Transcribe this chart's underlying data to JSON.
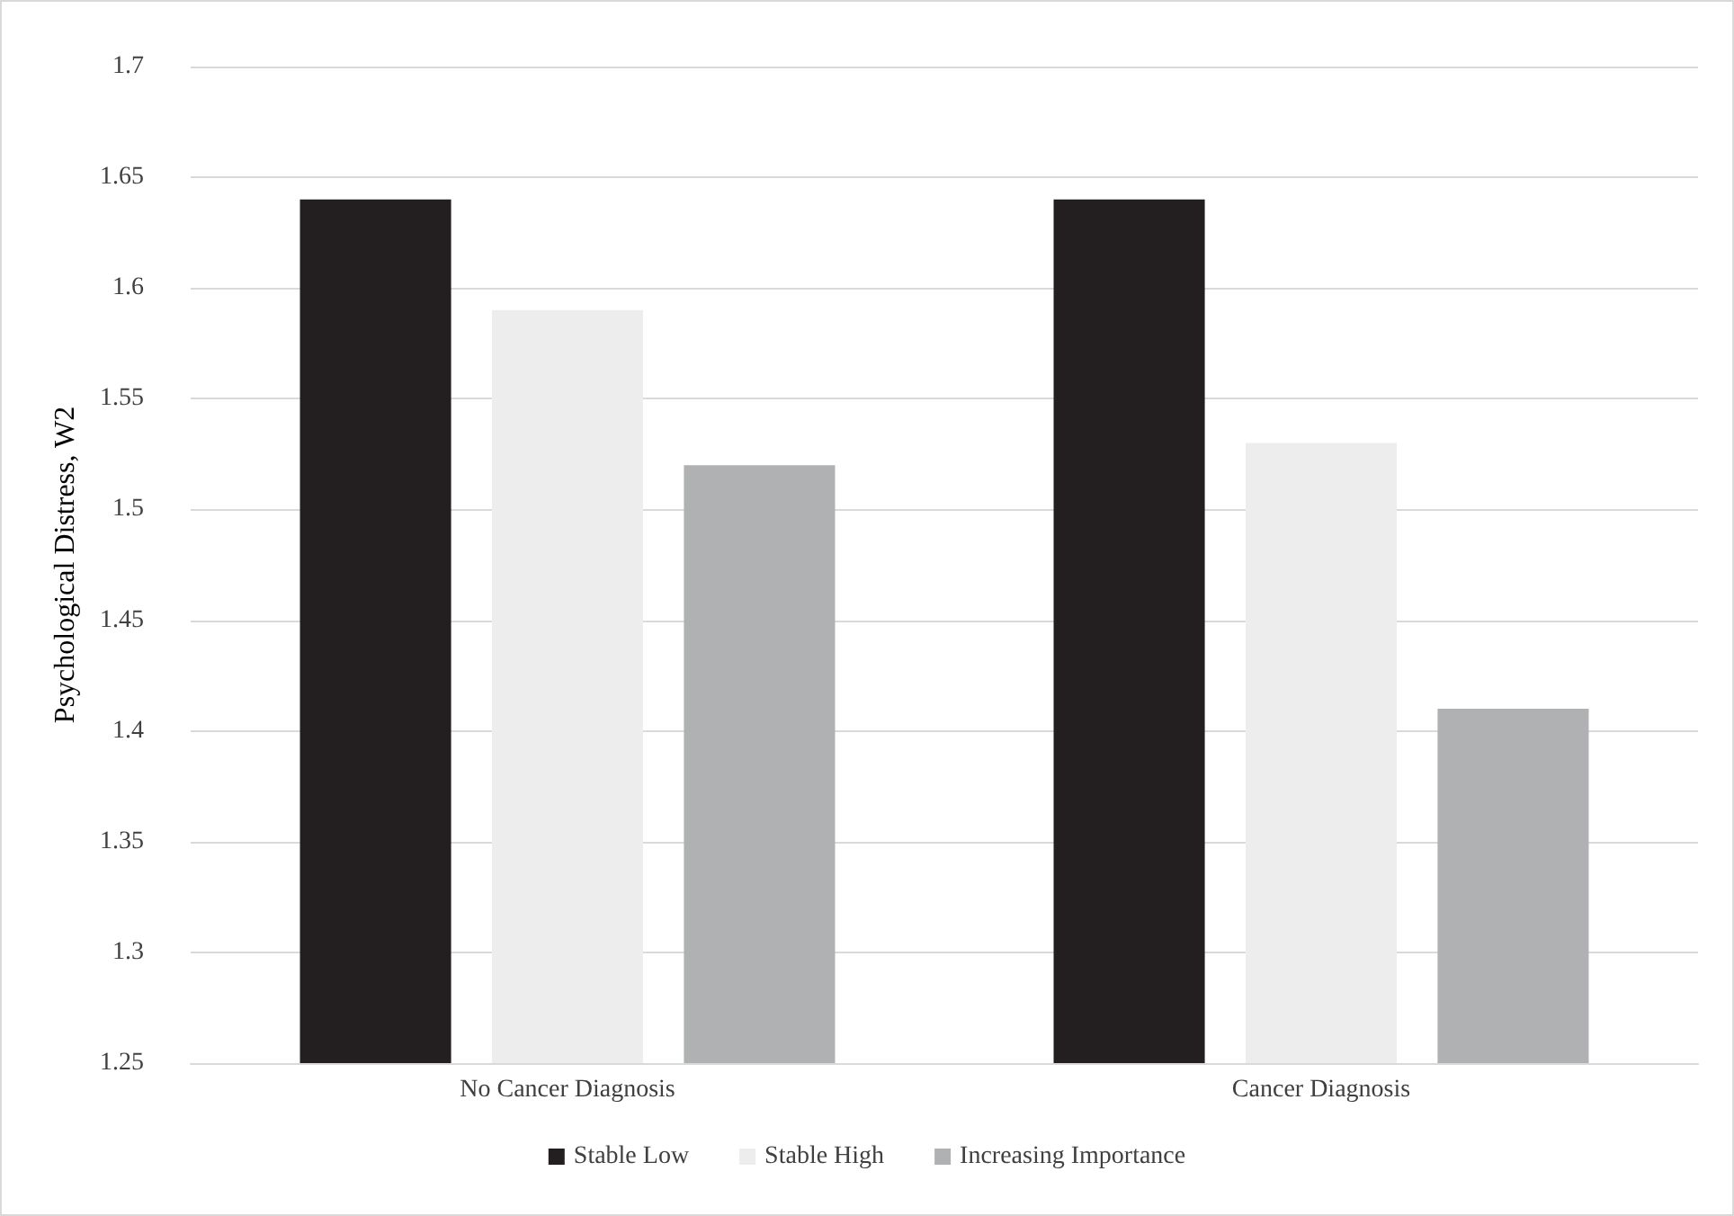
{
  "chart_data": {
    "type": "bar",
    "ylabel": "Psychological Distress, W2",
    "categories": [
      "No Cancer Diagnosis",
      "Cancer Diagnosis"
    ],
    "series": [
      {
        "name": "Stable Low",
        "color": "#231f20",
        "values": [
          1.64,
          1.64
        ]
      },
      {
        "name": "Stable High",
        "color": "#ededed",
        "values": [
          1.59,
          1.53
        ]
      },
      {
        "name": "Increasing Importance",
        "color": "#b0b1b3",
        "values": [
          1.52,
          1.41
        ]
      }
    ],
    "ylim": [
      1.25,
      1.7
    ],
    "yticks": [
      1.25,
      1.3,
      1.35,
      1.4,
      1.45,
      1.5,
      1.55,
      1.6,
      1.65,
      1.7
    ],
    "grid": "y",
    "legend": "bottom"
  }
}
